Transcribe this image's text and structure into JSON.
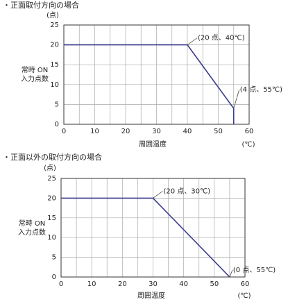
{
  "chart_data": [
    {
      "type": "line",
      "title": "・正面取付方向の場合",
      "yunit": "(点)",
      "ylabel": [
        "常時 ON",
        "入力点数"
      ],
      "xlabel": "周囲温度",
      "xunit": "(℃)",
      "xlim": [
        0,
        60
      ],
      "xticks": [
        0,
        10,
        20,
        30,
        40,
        50,
        60
      ],
      "x_minor_ticks": [
        5,
        15,
        25,
        35,
        45,
        55
      ],
      "ylim": [
        0,
        25
      ],
      "yticks": [
        0,
        5,
        10,
        15,
        20,
        25
      ],
      "grid": true,
      "series": [
        {
          "color": "#3b3b8e",
          "x": [
            0,
            40,
            55,
            55
          ],
          "values": [
            20,
            20,
            4,
            0
          ]
        }
      ],
      "annotations": [
        {
          "text": "(20 点、40℃)",
          "x": 40,
          "y": 20
        },
        {
          "text": "(4 点、55℃)",
          "x": 55,
          "y": 4
        }
      ]
    },
    {
      "type": "line",
      "title": "・正面以外の取付方向の場合",
      "yunit": "(点)",
      "ylabel": [
        "常時 ON",
        "入力点数"
      ],
      "xlabel": "周囲温度",
      "xunit": "(℃)",
      "xlim": [
        0,
        60
      ],
      "xticks": [
        0,
        10,
        20,
        30,
        40,
        50,
        60
      ],
      "x_minor_ticks": [
        5,
        15,
        25,
        35,
        45,
        55
      ],
      "ylim": [
        0,
        25
      ],
      "yticks": [
        0,
        5,
        10,
        15,
        20,
        25
      ],
      "grid": true,
      "series": [
        {
          "color": "#3b3b8e",
          "x": [
            0,
            30,
            55
          ],
          "values": [
            20,
            20,
            0
          ]
        }
      ],
      "annotations": [
        {
          "text": "(20 点、30℃)",
          "x": 30,
          "y": 20
        },
        {
          "text": "(0 点、55℃)",
          "x": 55,
          "y": 0
        }
      ]
    }
  ]
}
